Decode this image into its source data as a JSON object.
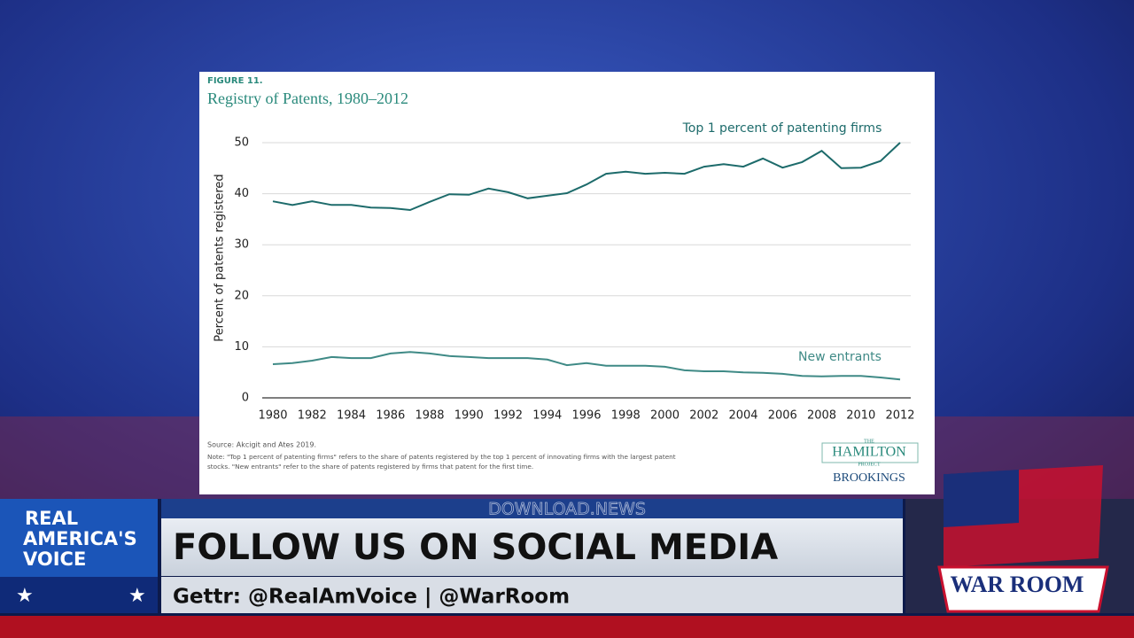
{
  "chart_data": {
    "type": "line",
    "figure_label": "FIGURE 11.",
    "title": "Registry of Patents, 1980–2012",
    "y_label": "Percent of patents registered",
    "x": [
      1980,
      1981,
      1982,
      1983,
      1984,
      1985,
      1986,
      1987,
      1988,
      1989,
      1990,
      1991,
      1992,
      1993,
      1994,
      1995,
      1996,
      1997,
      1998,
      1999,
      2000,
      2001,
      2002,
      2003,
      2004,
      2005,
      2006,
      2007,
      2008,
      2009,
      2010,
      2011,
      2012
    ],
    "series": [
      {
        "name": "Top 1 percent of patenting firms",
        "color": "#1d6b6b",
        "values": [
          38.5,
          37.8,
          38.5,
          37.8,
          37.8,
          37.3,
          37.2,
          36.8,
          38.4,
          39.9,
          39.8,
          41.0,
          40.3,
          39.1,
          39.6,
          40.1,
          41.8,
          43.9,
          44.3,
          43.9,
          44.1,
          43.9,
          45.3,
          45.8,
          45.3,
          46.9,
          45.1,
          46.2,
          48.4,
          45.0,
          45.1,
          46.4,
          50.0
        ]
      },
      {
        "name": "New entrants",
        "color": "#3f8a86",
        "values": [
          6.6,
          6.8,
          7.3,
          8.0,
          7.8,
          7.8,
          8.7,
          9.0,
          8.7,
          8.2,
          8.0,
          7.8,
          7.8,
          7.8,
          7.5,
          6.4,
          6.8,
          6.3,
          6.3,
          6.3,
          6.1,
          5.4,
          5.2,
          5.2,
          5.0,
          4.9,
          4.7,
          4.3,
          4.2,
          4.3,
          4.3,
          4.0,
          3.6
        ]
      }
    ],
    "xlim": [
      1980,
      2012
    ],
    "xticks": [
      1980,
      1982,
      1984,
      1986,
      1988,
      1990,
      1992,
      1994,
      1996,
      1998,
      2000,
      2002,
      2004,
      2006,
      2008,
      2010,
      2012
    ],
    "ylim": [
      0,
      50
    ],
    "yticks": [
      0,
      10,
      20,
      30,
      40,
      50
    ],
    "grid": true,
    "source": "Source: Akcigit and Ates 2019.",
    "note": [
      "Note: \"Top 1 percent of patenting firms\" refers to the share of patents registered by the top 1 percent of innovating firms with the largest patent",
      "stocks. \"New entrants\" refer to the share of patents registered by firms that patent for the first time."
    ],
    "logo": [
      "THE",
      "HAMILTON",
      "PROJECT",
      "BROOKINGS"
    ]
  },
  "banner": {
    "network": [
      "REAL",
      "AMERICA'S",
      "VOICE"
    ],
    "watermark": "DOWNLOAD.NEWS",
    "headline": "FOLLOW US ON SOCIAL MEDIA",
    "subline": "Gettr: @RealAmVoice  |  @WarRoom",
    "show": "WAR ROOM"
  }
}
